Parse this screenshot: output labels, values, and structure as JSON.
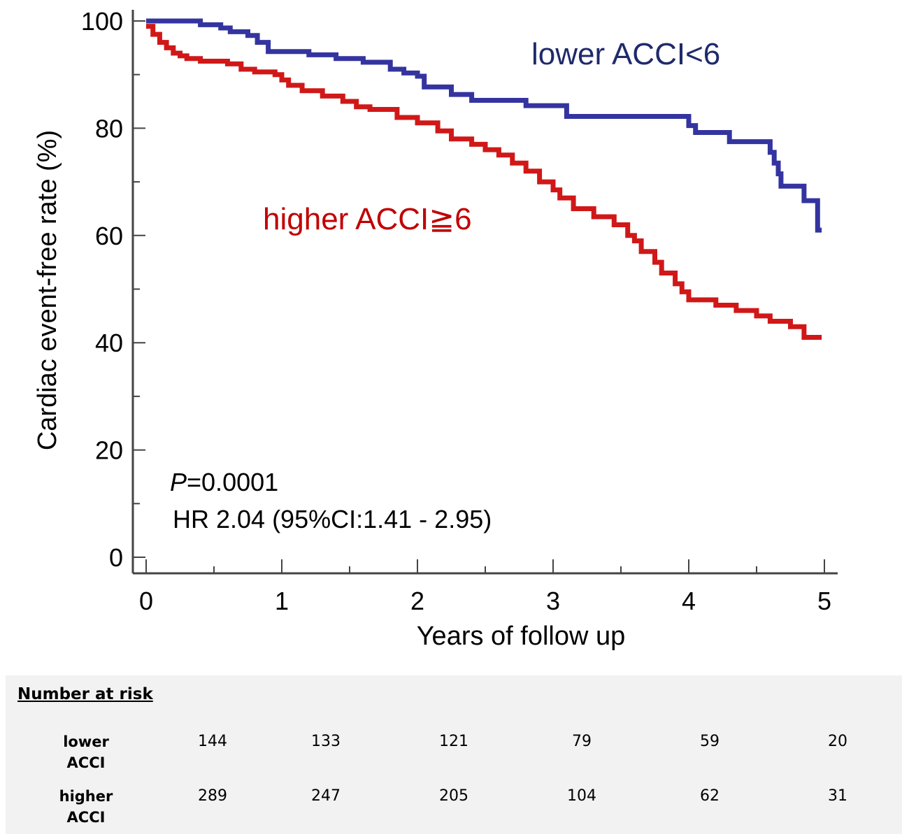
{
  "chart_data": {
    "type": "line",
    "title": "",
    "xlabel": "Years of follow up",
    "ylabel": "Cardiac event-free rate (%)",
    "xlim": [
      0,
      5
    ],
    "ylim": [
      0,
      100
    ],
    "xticks": [
      "0",
      "1",
      "2",
      "3",
      "4",
      "5"
    ],
    "yticks": [
      "0",
      "20",
      "40",
      "60",
      "80",
      "100"
    ],
    "grid": false,
    "series": [
      {
        "name": "lower ACCI<6",
        "color": "#3434a0",
        "label_color": "#1f2a6b",
        "step": true,
        "x": [
          0,
          0.4,
          0.55,
          0.62,
          0.75,
          0.82,
          0.9,
          1.2,
          1.4,
          1.6,
          1.8,
          1.9,
          2.0,
          2.05,
          2.25,
          2.4,
          2.7,
          2.8,
          3.0,
          3.1,
          3.5,
          3.9,
          4.0,
          4.05,
          4.3,
          4.6,
          4.63,
          4.66,
          4.68,
          4.7,
          4.85,
          4.9,
          4.95,
          4.98
        ],
        "y": [
          100,
          99.3,
          98.7,
          98,
          97.3,
          96,
          94.3,
          93.7,
          93,
          92.3,
          91,
          90.3,
          89.7,
          87.7,
          86.3,
          85.2,
          85.2,
          84.2,
          84.2,
          82.2,
          82.2,
          82.2,
          80.5,
          79.2,
          77.5,
          75.5,
          73.5,
          71.5,
          69.2,
          69.2,
          66.5,
          66.5,
          61,
          61
        ]
      },
      {
        "name": "higher ACCI≧6",
        "color": "#d01818",
        "label_color": "#c00000",
        "step": true,
        "x": [
          0,
          0.05,
          0.1,
          0.15,
          0.2,
          0.25,
          0.3,
          0.4,
          0.6,
          0.7,
          0.8,
          0.95,
          1.0,
          1.05,
          1.15,
          1.3,
          1.45,
          1.55,
          1.65,
          1.75,
          1.85,
          2.0,
          2.15,
          2.25,
          2.4,
          2.5,
          2.6,
          2.7,
          2.8,
          2.9,
          3.0,
          3.05,
          3.15,
          3.3,
          3.45,
          3.55,
          3.6,
          3.65,
          3.75,
          3.8,
          3.9,
          3.95,
          4.0,
          4.2,
          4.35,
          4.5,
          4.6,
          4.75,
          4.85,
          4.98
        ],
        "y": [
          99,
          97.5,
          96,
          95,
          94,
          93.5,
          93,
          92.5,
          92,
          91,
          90.5,
          90,
          89,
          88,
          87,
          86,
          85,
          84,
          83.5,
          83.5,
          82,
          81,
          79.5,
          78,
          77,
          76,
          75,
          73.5,
          72,
          70,
          68.5,
          67,
          65,
          63.5,
          62,
          60,
          59,
          57,
          55,
          53,
          51,
          49.5,
          48,
          47,
          46,
          45,
          44,
          43,
          41,
          41
        ]
      }
    ],
    "annotations": [
      {
        "p_label": "P",
        "p_value": "=0.0001"
      },
      {
        "text": "HR 2.04 (95%CI:1.41 - 2.95)"
      }
    ]
  },
  "risk_table": {
    "title": "Number at risk",
    "rows": [
      {
        "label_line1": "lower",
        "label_line2": "ACCI",
        "values": [
          "144",
          "133",
          "121",
          "79",
          "59",
          "20"
        ]
      },
      {
        "label_line1": "higher",
        "label_line2": "ACCI",
        "values": [
          "289",
          "247",
          "205",
          "104",
          "62",
          "31"
        ]
      }
    ]
  }
}
